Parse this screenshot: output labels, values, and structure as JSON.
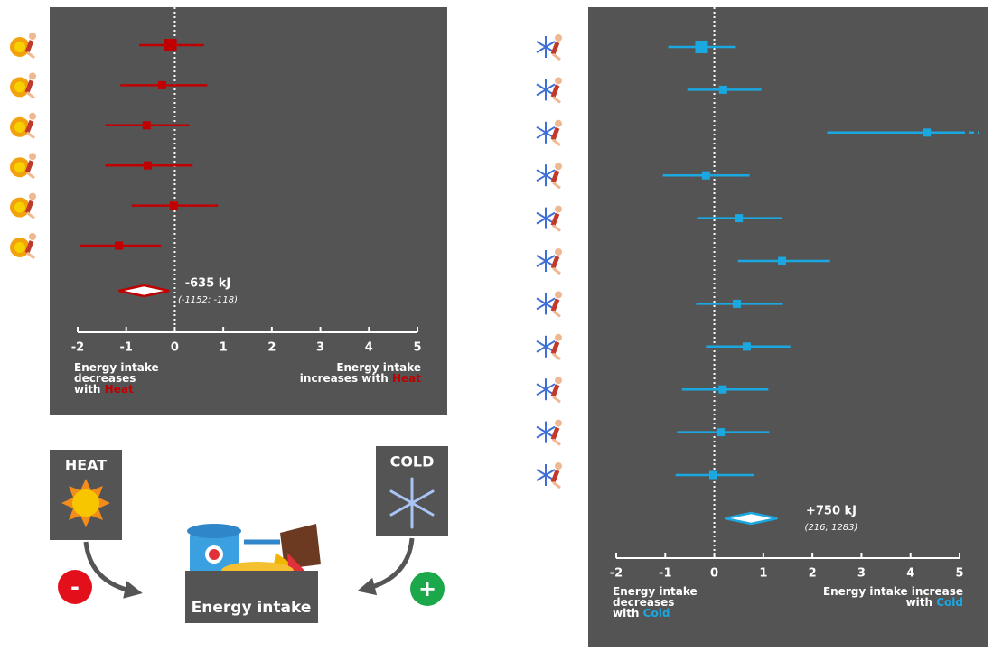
{
  "chart_data": [
    {
      "type": "forest",
      "color": "#c00000",
      "xlim": [
        -2,
        5
      ],
      "xticks": [
        -2,
        -1,
        0,
        1,
        2,
        3,
        4,
        5
      ],
      "reference_line": 0,
      "studies": {
        "values": [
          -0.09,
          -0.26,
          -0.58,
          -0.56,
          -0.02,
          -1.15
        ],
        "lower": [
          -0.73,
          -1.12,
          -1.43,
          -1.43,
          -0.89,
          -1.96
        ],
        "upper": [
          0.6,
          0.67,
          0.3,
          0.37,
          0.89,
          -0.28
        ]
      },
      "pooled": {
        "value": -0.635,
        "lower": -1.152,
        "upper": -0.118,
        "value_label": "-635 kJ",
        "ci_label": "(-1152; -118)"
      },
      "note_left": {
        "lines": [
          "Energy intake",
          "decreases",
          "with"
        ],
        "highlight": "Heat"
      },
      "note_right": {
        "lines": [
          "Energy intake",
          "increases with"
        ],
        "highlight": "Heat"
      }
    },
    {
      "type": "forest",
      "color": "#1ba8e0",
      "xlim": [
        -2,
        5
      ],
      "xticks": [
        -2,
        -1,
        0,
        1,
        2,
        3,
        4,
        5
      ],
      "reference_line": 0,
      "studies": {
        "values": [
          -0.26,
          0.18,
          4.33,
          -0.17,
          0.5,
          1.38,
          0.46,
          0.66,
          0.17,
          0.13,
          -0.02
        ],
        "lower": [
          -0.94,
          -0.55,
          2.3,
          -1.05,
          -0.35,
          0.48,
          -0.37,
          -0.17,
          -0.66,
          -0.76,
          -0.79
        ],
        "upper": [
          0.44,
          0.96,
          5.4,
          0.72,
          1.38,
          2.36,
          1.4,
          1.55,
          1.1,
          1.12,
          0.81
        ]
      },
      "pooled": {
        "value": 0.75,
        "lower": 0.216,
        "upper": 1.283,
        "value_label": "+750 kJ",
        "ci_label": "(216; 1283)"
      },
      "note_left": {
        "lines": [
          "Energy intake",
          "decreases",
          "with"
        ],
        "highlight": "Cold"
      },
      "note_right": {
        "lines": [
          "Energy intake increase",
          "with"
        ],
        "highlight": "Cold"
      }
    }
  ],
  "legend_graphic": {
    "heat": "HEAT",
    "cold": "COLD",
    "outcome": "Energy intake",
    "heat_sign": "-",
    "cold_sign": "+"
  }
}
